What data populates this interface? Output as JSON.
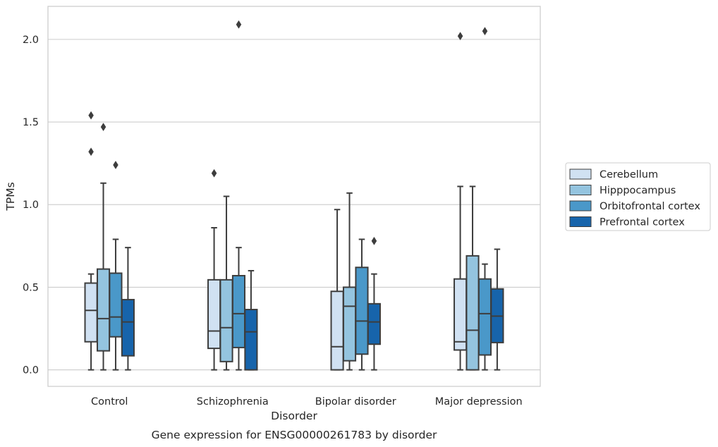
{
  "chart_data": {
    "type": "box",
    "title": "Gene expression for ENSG00000261783 by disorder",
    "xlabel": "Disorder",
    "ylabel": "TPMs",
    "ylim": [
      -0.1,
      2.2
    ],
    "yticks": [
      "0.0",
      "0.5",
      "1.0",
      "1.5",
      "2.0"
    ],
    "grid": "horizontal",
    "legend_position": "right",
    "categories": [
      "Control",
      "Schizophrenia",
      "Bipolar disorder",
      "Major depression"
    ],
    "series": [
      {
        "name": "Cerebellum",
        "color": "#d0e1f2",
        "boxes": [
          {
            "q1": 0.17,
            "median": 0.36,
            "q3": 0.525,
            "whisker_low": 0.0,
            "whisker_high": 0.58,
            "outliers": [
              1.32,
              1.54
            ]
          },
          {
            "q1": 0.13,
            "median": 0.235,
            "q3": 0.545,
            "whisker_low": 0.0,
            "whisker_high": 0.86,
            "outliers": [
              1.19
            ]
          },
          {
            "q1": 0.0,
            "median": 0.14,
            "q3": 0.475,
            "whisker_low": 0.0,
            "whisker_high": 0.97,
            "outliers": []
          },
          {
            "q1": 0.12,
            "median": 0.17,
            "q3": 0.55,
            "whisker_low": 0.0,
            "whisker_high": 1.11,
            "outliers": [
              2.02
            ]
          }
        ]
      },
      {
        "name": "Hipppocampus",
        "color": "#94c4df",
        "boxes": [
          {
            "q1": 0.115,
            "median": 0.31,
            "q3": 0.61,
            "whisker_low": 0.0,
            "whisker_high": 1.13,
            "outliers": [
              1.47
            ]
          },
          {
            "q1": 0.05,
            "median": 0.255,
            "q3": 0.545,
            "whisker_low": 0.0,
            "whisker_high": 1.05,
            "outliers": []
          },
          {
            "q1": 0.055,
            "median": 0.385,
            "q3": 0.5,
            "whisker_low": 0.0,
            "whisker_high": 1.07,
            "outliers": []
          },
          {
            "q1": 0.0,
            "median": 0.24,
            "q3": 0.69,
            "whisker_low": 0.0,
            "whisker_high": 1.11,
            "outliers": []
          }
        ]
      },
      {
        "name": "Orbitofrontal cortex",
        "color": "#4a98c9",
        "boxes": [
          {
            "q1": 0.2,
            "median": 0.32,
            "q3": 0.585,
            "whisker_low": 0.0,
            "whisker_high": 0.79,
            "outliers": [
              1.24
            ]
          },
          {
            "q1": 0.135,
            "median": 0.34,
            "q3": 0.57,
            "whisker_low": 0.0,
            "whisker_high": 0.74,
            "outliers": [
              2.09
            ]
          },
          {
            "q1": 0.095,
            "median": 0.295,
            "q3": 0.62,
            "whisker_low": 0.0,
            "whisker_high": 0.79,
            "outliers": []
          },
          {
            "q1": 0.09,
            "median": 0.34,
            "q3": 0.55,
            "whisker_low": 0.0,
            "whisker_high": 0.64,
            "outliers": [
              2.05
            ]
          }
        ]
      },
      {
        "name": "Prefrontal cortex",
        "color": "#1764ab",
        "boxes": [
          {
            "q1": 0.085,
            "median": 0.29,
            "q3": 0.425,
            "whisker_low": 0.0,
            "whisker_high": 0.74,
            "outliers": []
          },
          {
            "q1": 0.0,
            "median": 0.23,
            "q3": 0.365,
            "whisker_low": 0.0,
            "whisker_high": 0.6,
            "outliers": []
          },
          {
            "q1": 0.155,
            "median": 0.29,
            "q3": 0.4,
            "whisker_low": 0.0,
            "whisker_high": 0.58,
            "outliers": [
              0.78
            ]
          },
          {
            "q1": 0.165,
            "median": 0.325,
            "q3": 0.49,
            "whisker_low": 0.0,
            "whisker_high": 0.73,
            "outliers": []
          }
        ]
      }
    ]
  }
}
